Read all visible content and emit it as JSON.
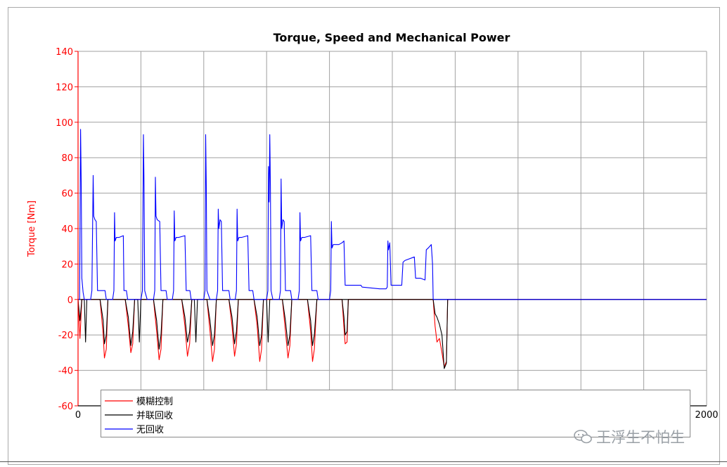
{
  "chart_data": {
    "type": "line",
    "title": "Torque, Speed and Mechanical Power",
    "ylabel": "Torque [Nm]",
    "xlabel": "",
    "xlim": [
      0,
      2000
    ],
    "ylim": [
      -60,
      140
    ],
    "x_ticks": [
      "0",
      "2000"
    ],
    "y_ticks": [
      "-60",
      "-40",
      "-20",
      "0",
      "20",
      "40",
      "60",
      "80",
      "100",
      "120",
      "140"
    ],
    "grid": true,
    "legend_position": "bottom-left",
    "series": [
      {
        "name": "模糊控制",
        "color": "#ff0000",
        "points": [
          [
            0,
            0
          ],
          [
            6,
            -22
          ],
          [
            12,
            0
          ],
          [
            20,
            0
          ],
          [
            70,
            0
          ],
          [
            80,
            -20
          ],
          [
            84,
            -33
          ],
          [
            90,
            -28
          ],
          [
            95,
            0
          ],
          [
            150,
            0
          ],
          [
            160,
            -15
          ],
          [
            168,
            -30
          ],
          [
            174,
            -25
          ],
          [
            180,
            0
          ],
          [
            240,
            0
          ],
          [
            250,
            -18
          ],
          [
            258,
            -34
          ],
          [
            264,
            -28
          ],
          [
            270,
            0
          ],
          [
            330,
            0
          ],
          [
            340,
            -15
          ],
          [
            348,
            -32
          ],
          [
            355,
            -25
          ],
          [
            362,
            0
          ],
          [
            410,
            0
          ],
          [
            420,
            -18
          ],
          [
            428,
            -35
          ],
          [
            434,
            -28
          ],
          [
            440,
            0
          ],
          [
            480,
            0
          ],
          [
            490,
            -15
          ],
          [
            498,
            -32
          ],
          [
            504,
            -25
          ],
          [
            510,
            0
          ],
          [
            560,
            0
          ],
          [
            570,
            -15
          ],
          [
            578,
            -35
          ],
          [
            584,
            -28
          ],
          [
            590,
            0
          ],
          [
            650,
            0
          ],
          [
            660,
            -18
          ],
          [
            668,
            -33
          ],
          [
            674,
            -26
          ],
          [
            680,
            0
          ],
          [
            730,
            0
          ],
          [
            740,
            -18
          ],
          [
            746,
            -35
          ],
          [
            752,
            -28
          ],
          [
            760,
            0
          ],
          [
            840,
            0
          ],
          [
            846,
            -16
          ],
          [
            850,
            -25
          ],
          [
            856,
            -24
          ],
          [
            860,
            0
          ],
          [
            1130,
            0
          ],
          [
            1136,
            -15
          ],
          [
            1142,
            -24
          ],
          [
            1150,
            -22
          ],
          [
            1158,
            -30
          ],
          [
            1165,
            -38
          ],
          [
            1172,
            -35
          ],
          [
            1176,
            0
          ],
          [
            2000,
            0
          ]
        ]
      },
      {
        "name": "并联回收",
        "color": "#000000",
        "points": [
          [
            0,
            0
          ],
          [
            6,
            -12
          ],
          [
            12,
            0
          ],
          [
            20,
            0
          ],
          [
            24,
            -24
          ],
          [
            28,
            0
          ],
          [
            70,
            0
          ],
          [
            80,
            -12
          ],
          [
            84,
            -25
          ],
          [
            90,
            -20
          ],
          [
            95,
            0
          ],
          [
            150,
            0
          ],
          [
            160,
            -10
          ],
          [
            168,
            -26
          ],
          [
            174,
            -18
          ],
          [
            180,
            0
          ],
          [
            190,
            0
          ],
          [
            195,
            -24
          ],
          [
            200,
            0
          ],
          [
            240,
            0
          ],
          [
            250,
            -12
          ],
          [
            258,
            -28
          ],
          [
            264,
            -20
          ],
          [
            270,
            0
          ],
          [
            330,
            0
          ],
          [
            340,
            -10
          ],
          [
            348,
            -24
          ],
          [
            355,
            -18
          ],
          [
            362,
            0
          ],
          [
            370,
            0
          ],
          [
            375,
            -24
          ],
          [
            380,
            0
          ],
          [
            410,
            0
          ],
          [
            420,
            -12
          ],
          [
            428,
            -26
          ],
          [
            434,
            -20
          ],
          [
            440,
            0
          ],
          [
            480,
            0
          ],
          [
            490,
            -10
          ],
          [
            498,
            -25
          ],
          [
            504,
            -18
          ],
          [
            510,
            0
          ],
          [
            560,
            0
          ],
          [
            570,
            -10
          ],
          [
            578,
            -26
          ],
          [
            584,
            -20
          ],
          [
            590,
            0
          ],
          [
            600,
            0
          ],
          [
            605,
            -24
          ],
          [
            610,
            0
          ],
          [
            650,
            0
          ],
          [
            660,
            -12
          ],
          [
            668,
            -26
          ],
          [
            674,
            -20
          ],
          [
            680,
            0
          ],
          [
            730,
            0
          ],
          [
            740,
            -12
          ],
          [
            746,
            -26
          ],
          [
            752,
            -20
          ],
          [
            760,
            0
          ],
          [
            840,
            0
          ],
          [
            846,
            -10
          ],
          [
            850,
            -20
          ],
          [
            856,
            -18
          ],
          [
            860,
            0
          ],
          [
            1130,
            0
          ],
          [
            1136,
            -8
          ],
          [
            1142,
            -10
          ],
          [
            1150,
            -14
          ],
          [
            1158,
            -20
          ],
          [
            1165,
            -39
          ],
          [
            1172,
            -36
          ],
          [
            1176,
            0
          ],
          [
            2000,
            0
          ]
        ]
      },
      {
        "name": "无回收",
        "color": "#0000ff",
        "points": [
          [
            0,
            0
          ],
          [
            5,
            0
          ],
          [
            8,
            96
          ],
          [
            10,
            66
          ],
          [
            12,
            12
          ],
          [
            16,
            4
          ],
          [
            20,
            0
          ],
          [
            40,
            0
          ],
          [
            44,
            5
          ],
          [
            48,
            70
          ],
          [
            50,
            47
          ],
          [
            54,
            45
          ],
          [
            58,
            44
          ],
          [
            62,
            5
          ],
          [
            68,
            5
          ],
          [
            86,
            5
          ],
          [
            90,
            0
          ],
          [
            110,
            0
          ],
          [
            114,
            5
          ],
          [
            116,
            49
          ],
          [
            118,
            33
          ],
          [
            122,
            35
          ],
          [
            130,
            35
          ],
          [
            144,
            36
          ],
          [
            146,
            5
          ],
          [
            154,
            5
          ],
          [
            158,
            0
          ],
          [
            200,
            0
          ],
          [
            205,
            5
          ],
          [
            208,
            93
          ],
          [
            210,
            64
          ],
          [
            212,
            5
          ],
          [
            220,
            0
          ],
          [
            240,
            0
          ],
          [
            244,
            5
          ],
          [
            246,
            69
          ],
          [
            248,
            47
          ],
          [
            252,
            45
          ],
          [
            260,
            44
          ],
          [
            264,
            5
          ],
          [
            280,
            5
          ],
          [
            284,
            0
          ],
          [
            300,
            0
          ],
          [
            304,
            5
          ],
          [
            306,
            50
          ],
          [
            308,
            33
          ],
          [
            312,
            35
          ],
          [
            320,
            35
          ],
          [
            340,
            36
          ],
          [
            344,
            5
          ],
          [
            356,
            5
          ],
          [
            360,
            0
          ],
          [
            400,
            0
          ],
          [
            404,
            5
          ],
          [
            406,
            93
          ],
          [
            408,
            64
          ],
          [
            410,
            5
          ],
          [
            420,
            0
          ],
          [
            440,
            0
          ],
          [
            444,
            5
          ],
          [
            446,
            51
          ],
          [
            448,
            40
          ],
          [
            452,
            45
          ],
          [
            456,
            44
          ],
          [
            460,
            5
          ],
          [
            480,
            5
          ],
          [
            484,
            0
          ],
          [
            500,
            0
          ],
          [
            504,
            5
          ],
          [
            506,
            51
          ],
          [
            508,
            33
          ],
          [
            512,
            35
          ],
          [
            520,
            35
          ],
          [
            540,
            36
          ],
          [
            544,
            5
          ],
          [
            556,
            5
          ],
          [
            560,
            0
          ],
          [
            600,
            0
          ],
          [
            604,
            5
          ],
          [
            606,
            75
          ],
          [
            608,
            55
          ],
          [
            610,
            93
          ],
          [
            612,
            64
          ],
          [
            614,
            5
          ],
          [
            620,
            0
          ],
          [
            640,
            0
          ],
          [
            644,
            5
          ],
          [
            646,
            68
          ],
          [
            648,
            40
          ],
          [
            652,
            45
          ],
          [
            656,
            44
          ],
          [
            660,
            5
          ],
          [
            676,
            5
          ],
          [
            680,
            0
          ],
          [
            700,
            0
          ],
          [
            704,
            5
          ],
          [
            706,
            49
          ],
          [
            708,
            33
          ],
          [
            712,
            35
          ],
          [
            720,
            35
          ],
          [
            740,
            36
          ],
          [
            744,
            5
          ],
          [
            760,
            5
          ],
          [
            764,
            0
          ],
          [
            800,
            0
          ],
          [
            804,
            5
          ],
          [
            806,
            44
          ],
          [
            808,
            29
          ],
          [
            812,
            31
          ],
          [
            830,
            31
          ],
          [
            840,
            32
          ],
          [
            846,
            33
          ],
          [
            850,
            8
          ],
          [
            860,
            8
          ],
          [
            900,
            8
          ],
          [
            904,
            7
          ],
          [
            960,
            6
          ],
          [
            980,
            6
          ],
          [
            984,
            7
          ],
          [
            986,
            33
          ],
          [
            988,
            28
          ],
          [
            992,
            32
          ],
          [
            996,
            8
          ],
          [
            1030,
            8
          ],
          [
            1034,
            21
          ],
          [
            1040,
            22
          ],
          [
            1070,
            24
          ],
          [
            1074,
            12
          ],
          [
            1090,
            12
          ],
          [
            1104,
            11
          ],
          [
            1108,
            28
          ],
          [
            1114,
            29
          ],
          [
            1124,
            31
          ],
          [
            1128,
            20
          ],
          [
            1130,
            0
          ],
          [
            1176,
            0
          ],
          [
            2000,
            0
          ]
        ]
      }
    ],
    "axis_color": "#ff0000",
    "grid_color": "#a0a0a0"
  },
  "watermark": {
    "text": "王浮生不怕生",
    "icon": "wechat-logo-icon"
  }
}
